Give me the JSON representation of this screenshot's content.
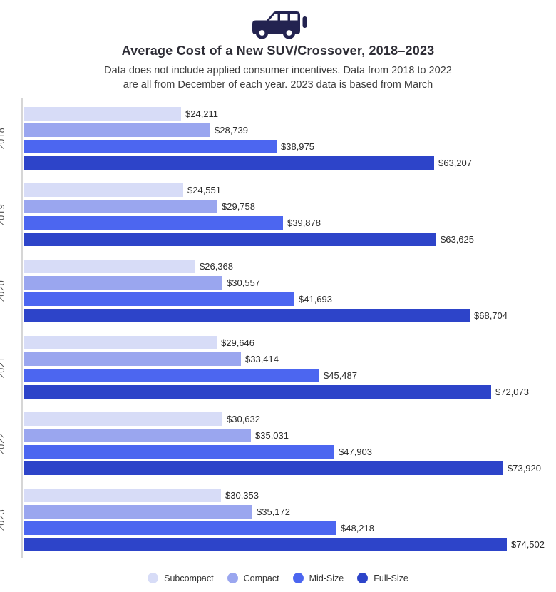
{
  "header": {
    "icon": "suv-icon",
    "title": "Average Cost of a New SUV/Crossover, 2018–2023",
    "subtitle_line1": "Data does not include applied consumer incentives. Data from 2018 to 2022",
    "subtitle_line2": "are all from December of each year. 2023 data is based from March"
  },
  "colors": {
    "icon_navy": "#232350",
    "subcompact": "#d7dcf7",
    "compact": "#9aa6ef",
    "midsize": "#4c66f0",
    "fullsize": "#2d44c9",
    "axis_line": "#d6d6d6",
    "title_text": "#2e2d36",
    "value_text": "#2b2b2b"
  },
  "chart_data": {
    "type": "bar",
    "orientation": "horizontal",
    "title": "Average Cost of a New SUV/Crossover, 2018–2023",
    "subtitle": "Data does not include applied consumer incentives. Data from 2018 to 2022 are all from December of each year. 2023 data is based from March",
    "categories": [
      "2018",
      "2019",
      "2020",
      "2021",
      "2022",
      "2023"
    ],
    "series": [
      "Subcompact",
      "Compact",
      "Mid-Size",
      "Full-Size"
    ],
    "groups": [
      {
        "year": "2018",
        "values": [
          24211,
          28739,
          38975,
          63207
        ],
        "labels": [
          "$24,211",
          "$28,739",
          "$38,975",
          "$63,207"
        ]
      },
      {
        "year": "2019",
        "values": [
          24551,
          29758,
          39878,
          63625
        ],
        "labels": [
          "$24,551",
          "$29,758",
          "$39,878",
          "$63,625"
        ]
      },
      {
        "year": "2020",
        "values": [
          26368,
          30557,
          41693,
          68704
        ],
        "labels": [
          "$26,368",
          "$30,557",
          "$41,693",
          "$68,704"
        ]
      },
      {
        "year": "2021",
        "values": [
          29646,
          33414,
          45487,
          72073
        ],
        "labels": [
          "$29,646",
          "$33,414",
          "$45,487",
          "$72,073"
        ]
      },
      {
        "year": "2022",
        "values": [
          30632,
          35031,
          47903,
          73920
        ],
        "labels": [
          "$30,632",
          "$35,031",
          "$47,903",
          "$73,920"
        ]
      },
      {
        "year": "2023",
        "values": [
          30353,
          35172,
          48218,
          74502
        ],
        "labels": [
          "$30,353",
          "$35,172",
          "$48,218",
          "$74,502"
        ]
      }
    ],
    "xlim": [
      0,
      80000
    ],
    "grid": false,
    "legend_position": "bottom",
    "legend": [
      "Subcompact",
      "Compact",
      "Mid-Size",
      "Full-Size"
    ]
  }
}
